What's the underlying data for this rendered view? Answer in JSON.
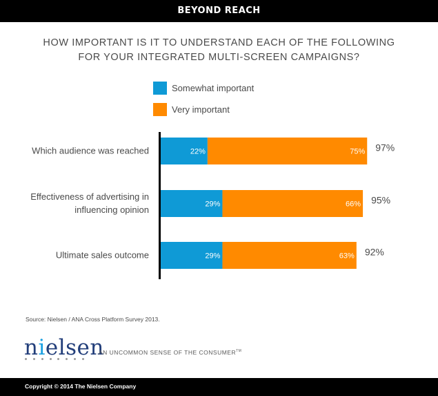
{
  "header": {
    "banner": "BEYOND REACH"
  },
  "chart_data": {
    "type": "bar",
    "stacked": true,
    "orientation": "horizontal",
    "title_lines": [
      "HOW IMPORTANT IS IT TO UNDERSTAND EACH OF THE FOLLOWING",
      "FOR YOUR INTEGRATED MULTI-SCREEN CAMPAIGNS?"
    ],
    "categories": [
      [
        "Which audience was reached"
      ],
      [
        "Effectiveness of advertising in",
        "influencing opinion"
      ],
      [
        "Ultimate sales outcome"
      ]
    ],
    "series": [
      {
        "name": "Somewhat important",
        "color": "#0f9ad6",
        "values": [
          22,
          29,
          29
        ],
        "labels": [
          "22%",
          "29%",
          "29%"
        ]
      },
      {
        "name": "Very important",
        "color": "#ff8a00",
        "values": [
          75,
          66,
          63
        ],
        "labels": [
          "75%",
          "66%",
          "63%"
        ]
      }
    ],
    "totals": [
      97,
      95,
      92
    ],
    "total_labels": [
      "97%",
      "95%",
      "92%"
    ],
    "xlim": [
      0,
      100
    ]
  },
  "source": "Source: Nielsen / ANA Cross Platform Survey 2013.",
  "brand": {
    "logo_pre": "n",
    "logo_i": "i",
    "logo_post": "elsen",
    "tagline": "AN UNCOMMON SENSE OF THE CONSUMER",
    "tagline_mark": "TM"
  },
  "footer": {
    "copyright": "Copyright © 2014 The Nielsen Company"
  }
}
